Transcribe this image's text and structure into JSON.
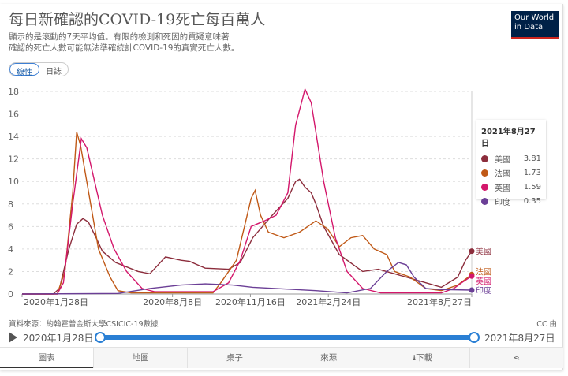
{
  "header": {
    "title": "每日新確認的COVID-19死亡每百萬人",
    "subtitle_1": "顯示的是滾動的7天平均值。有限的檢測和死因的質疑意味著",
    "subtitle_2": "確認的死亡人數可能無法準確統計COVID-19的真實死亡人數。",
    "logo": "Our World in Data"
  },
  "toggle": {
    "linear": "線性",
    "log": "日誌"
  },
  "tooltip": {
    "date": "2021年8月27日"
  },
  "footer": {
    "source": "資料來源：約翰霍普金斯大學CSICIC-19數據",
    "license": "CC 由",
    "start": "2020年1月28日",
    "end": "2021年8月27日"
  },
  "tabs": [
    "圖表",
    "地圖",
    "桌子",
    "來源",
    "下載",
    ""
  ],
  "chart_data": {
    "type": "line",
    "title": "每日新確認的COVID-19死亡每百萬人",
    "x_unit": "days since 2020-01-28",
    "xlim": [
      0,
      577
    ],
    "ylim": [
      0,
      18
    ],
    "yticks": [
      0,
      2,
      4,
      6,
      8,
      10,
      12,
      14,
      16,
      18
    ],
    "xticks": [
      {
        "day": 0,
        "label": "2020年1月28日"
      },
      {
        "day": 193,
        "label": "2020年8月8日"
      },
      {
        "day": 293,
        "label": "2020年11月16日"
      },
      {
        "day": 393,
        "label": "2021年2月24日"
      },
      {
        "day": 577,
        "label": "2021年8月27日"
      }
    ],
    "series": [
      {
        "name": "美國",
        "color": "#8c2d3c",
        "last": "3.81",
        "points": [
          [
            0,
            0
          ],
          [
            40,
            0
          ],
          [
            48,
            0.5
          ],
          [
            60,
            4
          ],
          [
            70,
            6.2
          ],
          [
            78,
            6.7
          ],
          [
            85,
            6.4
          ],
          [
            95,
            5
          ],
          [
            103,
            3.8
          ],
          [
            120,
            2.8
          ],
          [
            149,
            2
          ],
          [
            164,
            1.8
          ],
          [
            184,
            3.3
          ],
          [
            204,
            3
          ],
          [
            215,
            2.9
          ],
          [
            235,
            2.3
          ],
          [
            265,
            2.2
          ],
          [
            280,
            2.8
          ],
          [
            296,
            5
          ],
          [
            321,
            7
          ],
          [
            341,
            8.5
          ],
          [
            351,
            10
          ],
          [
            356,
            10.2
          ],
          [
            363,
            9.5
          ],
          [
            371,
            9
          ],
          [
            377,
            8
          ],
          [
            387,
            6
          ],
          [
            407,
            3.5
          ],
          [
            437,
            2
          ],
          [
            457,
            2.2
          ],
          [
            478,
            1.8
          ],
          [
            518,
            1
          ],
          [
            538,
            0.6
          ],
          [
            559,
            1.5
          ],
          [
            569,
            3
          ],
          [
            577,
            3.81
          ]
        ]
      },
      {
        "name": "法國",
        "color": "#c05917",
        "last": "1.73",
        "points": [
          [
            0,
            0
          ],
          [
            45,
            0
          ],
          [
            55,
            2
          ],
          [
            65,
            9
          ],
          [
            70,
            14.4
          ],
          [
            75,
            13.2
          ],
          [
            78,
            12
          ],
          [
            88,
            8
          ],
          [
            98,
            4
          ],
          [
            113,
            1.5
          ],
          [
            123,
            0.3
          ],
          [
            140,
            0.1
          ],
          [
            245,
            0.1
          ],
          [
            255,
            1
          ],
          [
            275,
            3
          ],
          [
            294,
            8.5
          ],
          [
            299,
            9.2
          ],
          [
            306,
            7
          ],
          [
            316,
            5.5
          ],
          [
            336,
            5
          ],
          [
            356,
            5.5
          ],
          [
            377,
            6.5
          ],
          [
            392,
            5.8
          ],
          [
            407,
            4.2
          ],
          [
            422,
            5
          ],
          [
            437,
            5.2
          ],
          [
            452,
            4
          ],
          [
            468,
            3.5
          ],
          [
            478,
            2
          ],
          [
            498,
            1.5
          ],
          [
            518,
            0.5
          ],
          [
            538,
            0.3
          ],
          [
            559,
            0.8
          ],
          [
            577,
            1.73
          ]
        ]
      },
      {
        "name": "英國",
        "color": "#d3176b",
        "last": "1.59",
        "points": [
          [
            0,
            0
          ],
          [
            45,
            0
          ],
          [
            53,
            1
          ],
          [
            65,
            8
          ],
          [
            76,
            13.8
          ],
          [
            83,
            13
          ],
          [
            93,
            10
          ],
          [
            103,
            7
          ],
          [
            118,
            4
          ],
          [
            134,
            2
          ],
          [
            154,
            0.5
          ],
          [
            170,
            0.2
          ],
          [
            245,
            0.2
          ],
          [
            265,
            1
          ],
          [
            280,
            3
          ],
          [
            294,
            6
          ],
          [
            311,
            6.5
          ],
          [
            326,
            7
          ],
          [
            341,
            9
          ],
          [
            351,
            15
          ],
          [
            363,
            18.2
          ],
          [
            371,
            17
          ],
          [
            387,
            10
          ],
          [
            402,
            5
          ],
          [
            417,
            2
          ],
          [
            437,
            0.5
          ],
          [
            460,
            0.1
          ],
          [
            538,
            0.1
          ],
          [
            554,
            0.5
          ],
          [
            564,
            1
          ],
          [
            577,
            1.59
          ]
        ]
      },
      {
        "name": "印度",
        "color": "#6b3f96",
        "last": "0.35",
        "points": [
          [
            0,
            0
          ],
          [
            123,
            0.05
          ],
          [
            164,
            0.5
          ],
          [
            204,
            0.8
          ],
          [
            235,
            0.9
          ],
          [
            270,
            0.8
          ],
          [
            296,
            0.6
          ],
          [
            377,
            0.3
          ],
          [
            417,
            0.1
          ],
          [
            447,
            0.5
          ],
          [
            468,
            2
          ],
          [
            483,
            2.8
          ],
          [
            493,
            2.6
          ],
          [
            503,
            1.5
          ],
          [
            518,
            0.5
          ],
          [
            538,
            0.4
          ],
          [
            577,
            0.35
          ]
        ]
      }
    ]
  }
}
